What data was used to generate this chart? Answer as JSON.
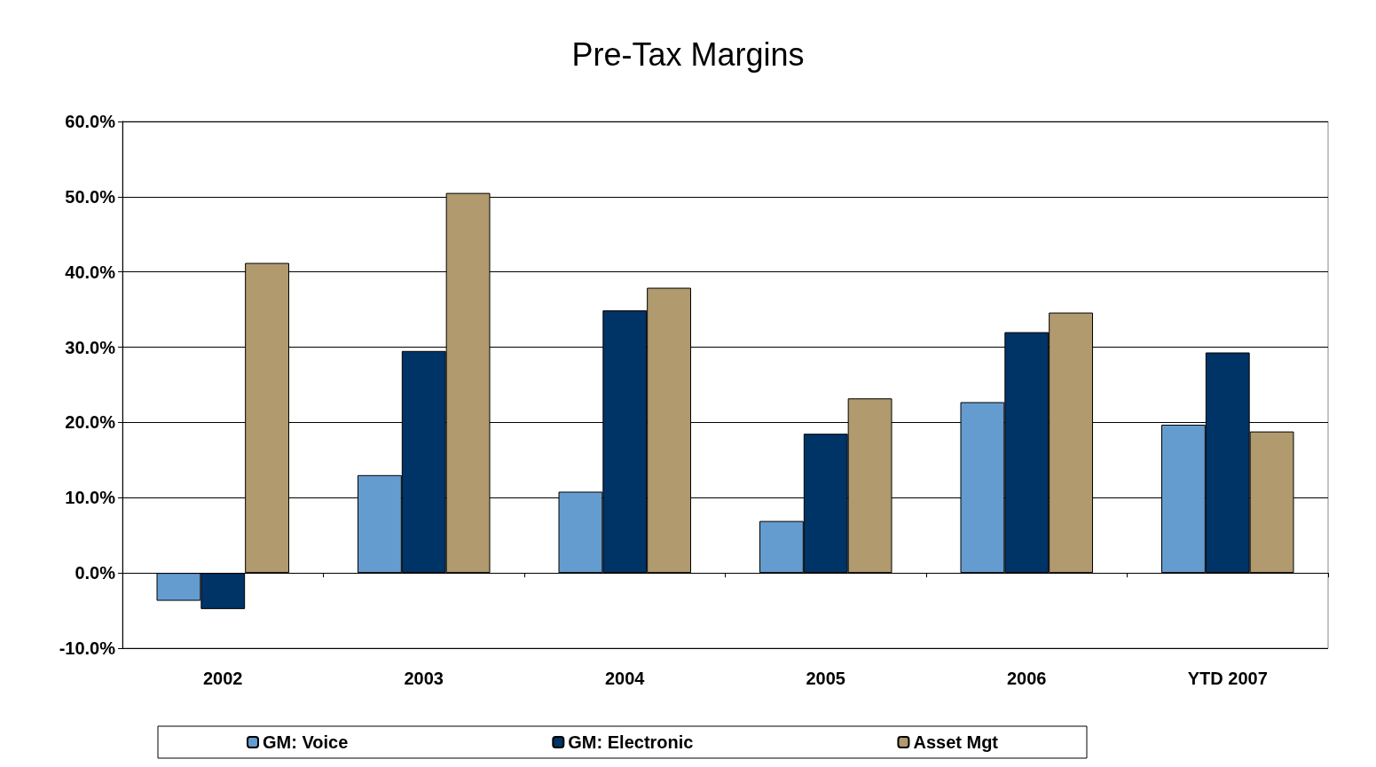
{
  "chart_data": {
    "type": "bar",
    "title": "Pre-Tax Margins",
    "categories": [
      "2002",
      "2003",
      "2004",
      "2005",
      "2006",
      "YTD 2007"
    ],
    "series": [
      {
        "name": "GM: Voice",
        "color": "#659ccf",
        "values": [
          -3.7,
          13.0,
          10.8,
          6.9,
          22.7,
          19.7
        ]
      },
      {
        "name": "GM: Electronic",
        "color": "#003366",
        "values": [
          -4.8,
          29.5,
          34.9,
          18.5,
          32.0,
          29.3
        ]
      },
      {
        "name": "Asset Mgt",
        "color": "#b09a6e",
        "values": [
          41.2,
          50.5,
          37.9,
          23.2,
          34.6,
          18.8
        ]
      }
    ],
    "ylim": [
      -10,
      60
    ],
    "yticks": [
      {
        "value": -10,
        "label": "-10.0%"
      },
      {
        "value": 0,
        "label": "0.0%"
      },
      {
        "value": 10,
        "label": "10.0%"
      },
      {
        "value": 20,
        "label": "20.0%"
      },
      {
        "value": 30,
        "label": "30.0%"
      },
      {
        "value": 40,
        "label": "40.0%"
      },
      {
        "value": 50,
        "label": "50.0%"
      },
      {
        "value": 60,
        "label": "60.0%"
      }
    ],
    "grid": "y",
    "legend": "bottom"
  }
}
